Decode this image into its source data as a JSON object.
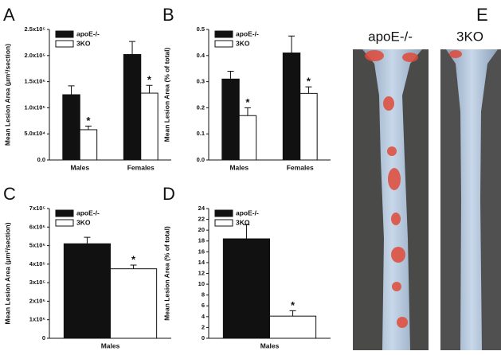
{
  "chart_data": [
    {
      "type": "bar",
      "panel": "A",
      "ylabel": "Mean Lesion Area (μm²/section)",
      "categories": [
        "Males",
        "Females"
      ],
      "series": [
        {
          "name": "apoE-/-",
          "color": "#111111",
          "values": [
            125000,
            202000
          ],
          "errors": [
            17000,
            25000
          ]
        },
        {
          "name": "3KO",
          "color": "#ffffff",
          "values": [
            58000,
            128000
          ],
          "errors": [
            7000,
            15000
          ],
          "significance": [
            "*",
            "*"
          ]
        }
      ],
      "ylim": [
        0,
        250000
      ],
      "yticks": [
        {
          "value": 0,
          "label": "0.0"
        },
        {
          "value": 50000,
          "label": "5.0x10⁴"
        },
        {
          "value": 100000,
          "label": "1.0x10⁵"
        },
        {
          "value": 150000,
          "label": "1.5x10⁵"
        },
        {
          "value": 200000,
          "label": "2.0x10⁵"
        },
        {
          "value": 250000,
          "label": "2.5x10⁵"
        }
      ]
    },
    {
      "type": "bar",
      "panel": "B",
      "ylabel": "Mean Lesion Area (% of total)",
      "categories": [
        "Males",
        "Females"
      ],
      "series": [
        {
          "name": "apoE-/-",
          "color": "#111111",
          "values": [
            0.31,
            0.41
          ],
          "errors": [
            0.03,
            0.065
          ]
        },
        {
          "name": "3KO",
          "color": "#ffffff",
          "values": [
            0.17,
            0.255
          ],
          "errors": [
            0.03,
            0.025
          ],
          "significance": [
            "*",
            "*"
          ]
        }
      ],
      "ylim": [
        0,
        0.5
      ],
      "yticks": [
        {
          "value": 0,
          "label": "0.0"
        },
        0.1,
        0.2,
        0.3,
        0.4,
        0.5
      ]
    },
    {
      "type": "bar",
      "panel": "C",
      "ylabel": "Mean Lesion Area (μm²/section)",
      "categories": [
        "Males"
      ],
      "series": [
        {
          "name": "apoE-/-",
          "color": "#111111",
          "values": [
            510000
          ],
          "errors": [
            35000
          ]
        },
        {
          "name": "3KO",
          "color": "#ffffff",
          "values": [
            375000
          ],
          "errors": [
            20000
          ],
          "significance": [
            "*"
          ]
        }
      ],
      "ylim": [
        0,
        700000
      ],
      "yticks": [
        0,
        {
          "value": 100000,
          "label": "1x10⁵"
        },
        {
          "value": 200000,
          "label": "2x10⁵"
        },
        {
          "value": 300000,
          "label": "3x10⁵"
        },
        {
          "value": 400000,
          "label": "4x10⁵"
        },
        {
          "value": 500000,
          "label": "5x10⁵"
        },
        {
          "value": 600000,
          "label": "6x10⁵"
        },
        {
          "value": 700000,
          "label": "7x10⁵"
        }
      ]
    },
    {
      "type": "bar",
      "panel": "D",
      "ylabel": "Mean Lesion Area (% of total)",
      "categories": [
        "Males"
      ],
      "series": [
        {
          "name": "apoE-/-",
          "color": "#111111",
          "values": [
            18.4
          ],
          "errors": [
            2.6
          ]
        },
        {
          "name": "3KO",
          "color": "#ffffff",
          "values": [
            4.1
          ],
          "errors": [
            1.0
          ],
          "significance": [
            "*"
          ]
        }
      ],
      "ylim": [
        0,
        24
      ],
      "yticks": [
        0,
        2,
        4,
        6,
        8,
        10,
        12,
        14,
        16,
        18,
        20,
        22,
        24
      ]
    }
  ],
  "image_panel": {
    "panel": "E",
    "labels": [
      "apoE-/-",
      "3KO"
    ]
  }
}
